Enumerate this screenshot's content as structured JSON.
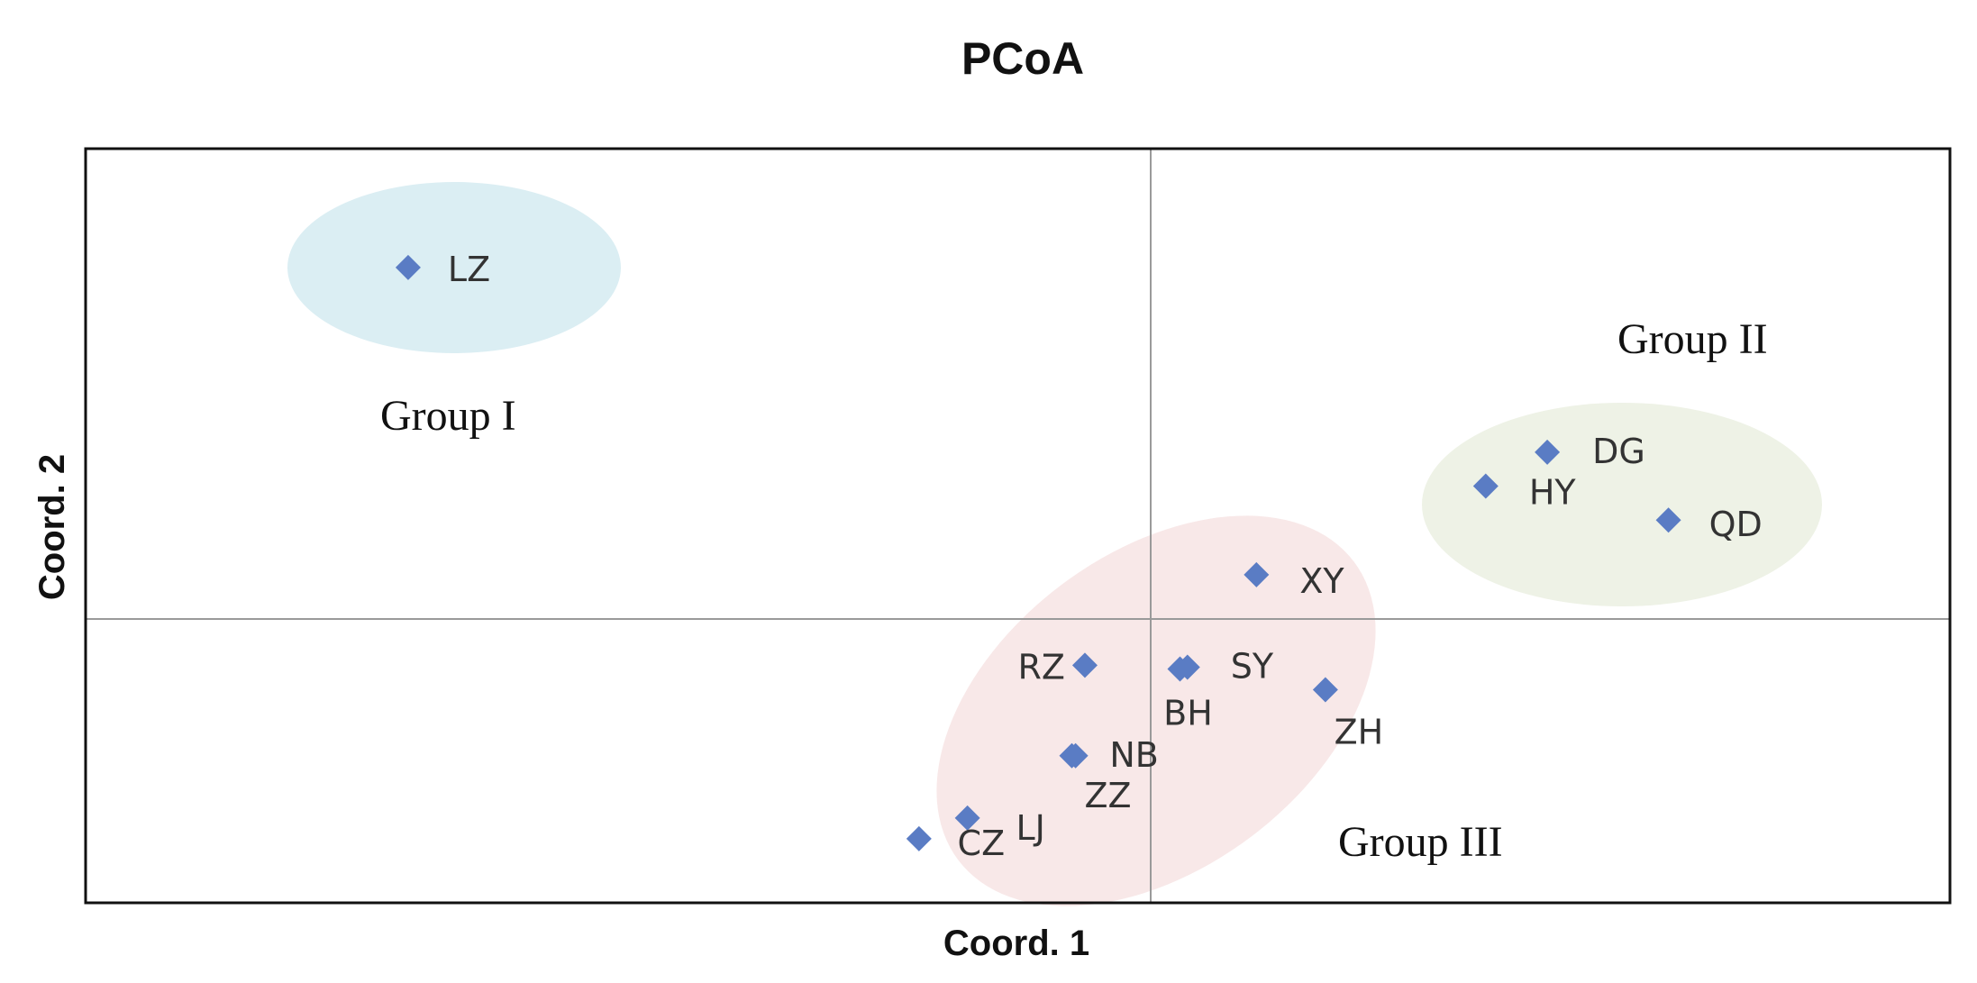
{
  "chart_data": {
    "type": "scatter",
    "title": "PCoA",
    "xlabel": "Coord. 1",
    "ylabel": "Coord. 2",
    "xlim": [
      -0.57,
      0.43
    ],
    "ylim": [
      -0.15,
      0.25
    ],
    "grid": false,
    "marker": "diamond",
    "marker_color": "#5a7cc4",
    "points": [
      {
        "label": "LZ",
        "x": -0.397,
        "y": 0.187
      },
      {
        "label": "DG",
        "x": 0.214,
        "y": 0.089
      },
      {
        "label": "HY",
        "x": 0.181,
        "y": 0.071
      },
      {
        "label": "QD",
        "x": 0.279,
        "y": 0.053
      },
      {
        "label": "XY",
        "x": 0.058,
        "y": 0.024
      },
      {
        "label": "RZ",
        "x": -0.034,
        "y": -0.024
      },
      {
        "label": "SY",
        "x": 0.021,
        "y": -0.025
      },
      {
        "label": "BH",
        "x": 0.017,
        "y": -0.026
      },
      {
        "label": "ZH",
        "x": 0.095,
        "y": -0.037
      },
      {
        "label": "NB",
        "x": -0.039,
        "y": -0.072
      },
      {
        "label": "ZZ",
        "x": -0.041,
        "y": -0.072
      },
      {
        "label": "LJ",
        "x": -0.097,
        "y": -0.105
      },
      {
        "label": "CZ",
        "x": -0.123,
        "y": -0.116
      }
    ],
    "groups": [
      {
        "name": "Group I",
        "members": [
          "LZ"
        ],
        "color": "#dbeef3"
      },
      {
        "name": "Group II",
        "members": [
          "DG",
          "HY",
          "QD"
        ],
        "color": "#eef2e6"
      },
      {
        "name": "Group III",
        "members": [
          "XY",
          "RZ",
          "SY",
          "BH",
          "ZH",
          "NB",
          "ZZ",
          "LJ",
          "CZ"
        ],
        "color": "#f8e8e8"
      }
    ]
  }
}
